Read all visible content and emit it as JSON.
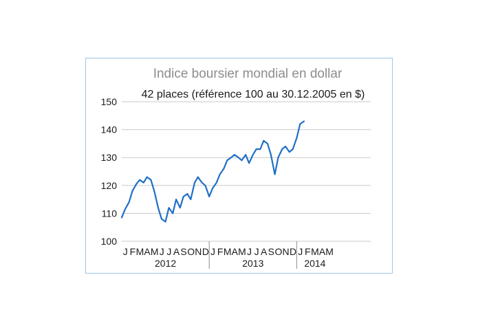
{
  "chart_data": {
    "type": "line",
    "title": "Indice boursier mondial en dollar",
    "subtitle": "42 places (référence 100 au 30.12.2005 en $)",
    "ylim": [
      100,
      150
    ],
    "yticks": [
      "100",
      "110",
      "120",
      "130",
      "140",
      "150"
    ],
    "grid": true,
    "months": [
      "J",
      "F",
      "M",
      "A",
      "M",
      "J",
      "J",
      "A",
      "S",
      "O",
      "N",
      "D",
      "J",
      "F",
      "M",
      "A",
      "M",
      "J",
      "J",
      "A",
      "S",
      "O",
      "N",
      "D",
      "J",
      "F",
      "M",
      "A",
      "M"
    ],
    "years": [
      "2012",
      "2013",
      "2014"
    ],
    "series": [
      {
        "color": "#1f6fc6",
        "x": [
          "2012-01",
          "2012-01-15",
          "2012-02",
          "2012-02-15",
          "2012-03",
          "2012-03-15",
          "2012-04",
          "2012-04-15",
          "2012-05",
          "2012-05-15",
          "2012-06",
          "2012-06-15",
          "2012-07",
          "2012-07-15",
          "2012-08",
          "2012-08-15",
          "2012-09",
          "2012-09-15",
          "2012-10",
          "2012-10-15",
          "2012-11",
          "2012-11-15",
          "2012-12",
          "2012-12-15",
          "2013-01",
          "2013-01-15",
          "2013-02",
          "2013-02-15",
          "2013-03",
          "2013-03-15",
          "2013-04",
          "2013-04-15",
          "2013-05",
          "2013-05-15",
          "2013-06",
          "2013-06-15",
          "2013-07",
          "2013-07-15",
          "2013-08",
          "2013-08-15",
          "2013-09",
          "2013-09-15",
          "2013-10",
          "2013-10-15",
          "2013-11",
          "2013-11-15",
          "2013-12",
          "2013-12-15",
          "2014-01",
          "2014-01-15",
          "2014-02"
        ],
        "values": [
          108.5,
          111.5,
          114,
          118,
          120.5,
          122,
          121,
          123,
          122,
          118,
          112,
          108,
          107,
          112,
          110,
          115,
          112,
          116,
          117,
          115,
          121,
          123,
          121,
          120,
          116,
          119,
          121,
          124,
          126,
          129,
          130,
          131,
          130,
          129,
          131,
          128,
          131,
          133,
          133,
          136,
          135,
          131,
          124,
          130,
          133,
          134,
          132,
          133,
          137,
          142,
          143
        ]
      }
    ]
  }
}
